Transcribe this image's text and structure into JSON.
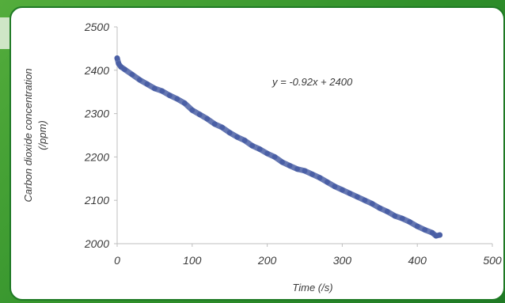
{
  "chart_data": {
    "type": "scatter",
    "title": "",
    "xlabel": "Time (/s)",
    "ylabel_line1": "Carbon dioxide concentration",
    "ylabel_line2": "(/ppm)",
    "xlim": [
      0,
      500
    ],
    "ylim": [
      2000,
      2500
    ],
    "x_ticks": [
      0,
      100,
      200,
      300,
      400,
      500
    ],
    "x_tick_labels": [
      "0",
      "100",
      "200",
      "300",
      "400",
      "500"
    ],
    "y_ticks": [
      2000,
      2100,
      2200,
      2300,
      2400,
      2500
    ],
    "y_tick_labels": [
      "2000",
      "2100",
      "2200",
      "2300",
      "2400",
      "2500"
    ],
    "grid": false,
    "marker_color": "#4a5fa5",
    "annotation": "y = -0.92x + 2400",
    "trend": {
      "slope": -0.92,
      "intercept": 2400
    },
    "series": [
      {
        "x": [
          0,
          2,
          5,
          10,
          20,
          30,
          40,
          50,
          60,
          70,
          80,
          90,
          100,
          110,
          120,
          130,
          140,
          150,
          160,
          170,
          180,
          190,
          200,
          210,
          220,
          230,
          240,
          250,
          260,
          270,
          280,
          290,
          300,
          310,
          320,
          330,
          340,
          350,
          360,
          370,
          380,
          390,
          400,
          410,
          420,
          425,
          430
        ],
        "y": [
          2428,
          2415,
          2408,
          2402,
          2390,
          2378,
          2368,
          2358,
          2352,
          2342,
          2334,
          2324,
          2308,
          2298,
          2288,
          2276,
          2268,
          2256,
          2246,
          2238,
          2226,
          2218,
          2208,
          2200,
          2188,
          2180,
          2172,
          2168,
          2160,
          2152,
          2142,
          2132,
          2124,
          2116,
          2108,
          2100,
          2092,
          2082,
          2074,
          2064,
          2058,
          2050,
          2040,
          2032,
          2025,
          2018,
          2020
        ]
      }
    ]
  },
  "colors": {
    "frame": "#2f8f2a",
    "panel_bg": "#ffffff",
    "axis": "#bfbfbf"
  }
}
